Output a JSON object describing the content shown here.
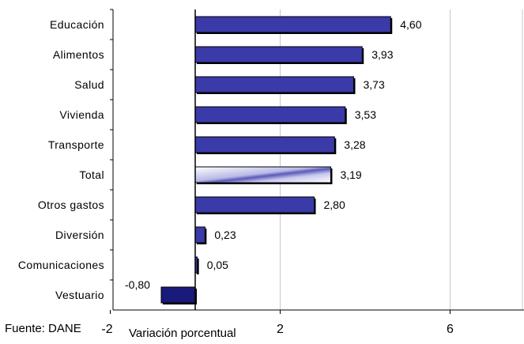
{
  "source_note": "Fuente: DANE",
  "chart_data": {
    "type": "bar",
    "orientation": "horizontal",
    "title": "",
    "xlabel": "Variación porcentual",
    "ylabel": "",
    "xlim": [
      -2,
      8
    ],
    "x_ticks": [
      -2,
      2,
      6
    ],
    "x_tick_labels": [
      "-2",
      "2",
      "6"
    ],
    "grid": true,
    "categories": [
      "Educación",
      "Alimentos",
      "Salud",
      "Vivienda",
      "Transporte",
      "Total",
      "Otros gastos",
      "Diversión",
      "Comunicaciones",
      "Vestuario"
    ],
    "values": [
      4.6,
      3.93,
      3.73,
      3.53,
      3.28,
      3.19,
      2.8,
      0.23,
      0.05,
      -0.8
    ],
    "value_labels": [
      "4,60",
      "3,93",
      "3,73",
      "3,53",
      "3,28",
      "3,19",
      "2,80",
      "0,23",
      "0,05",
      "-0,80"
    ],
    "colors": {
      "bar": "#3a3aa8",
      "bar_negative": "#1a1a7a",
      "total_bar": "#c8c8ec",
      "grid": "#c8c8c8",
      "axis": "#000000"
    },
    "highlight_category": "Total"
  }
}
